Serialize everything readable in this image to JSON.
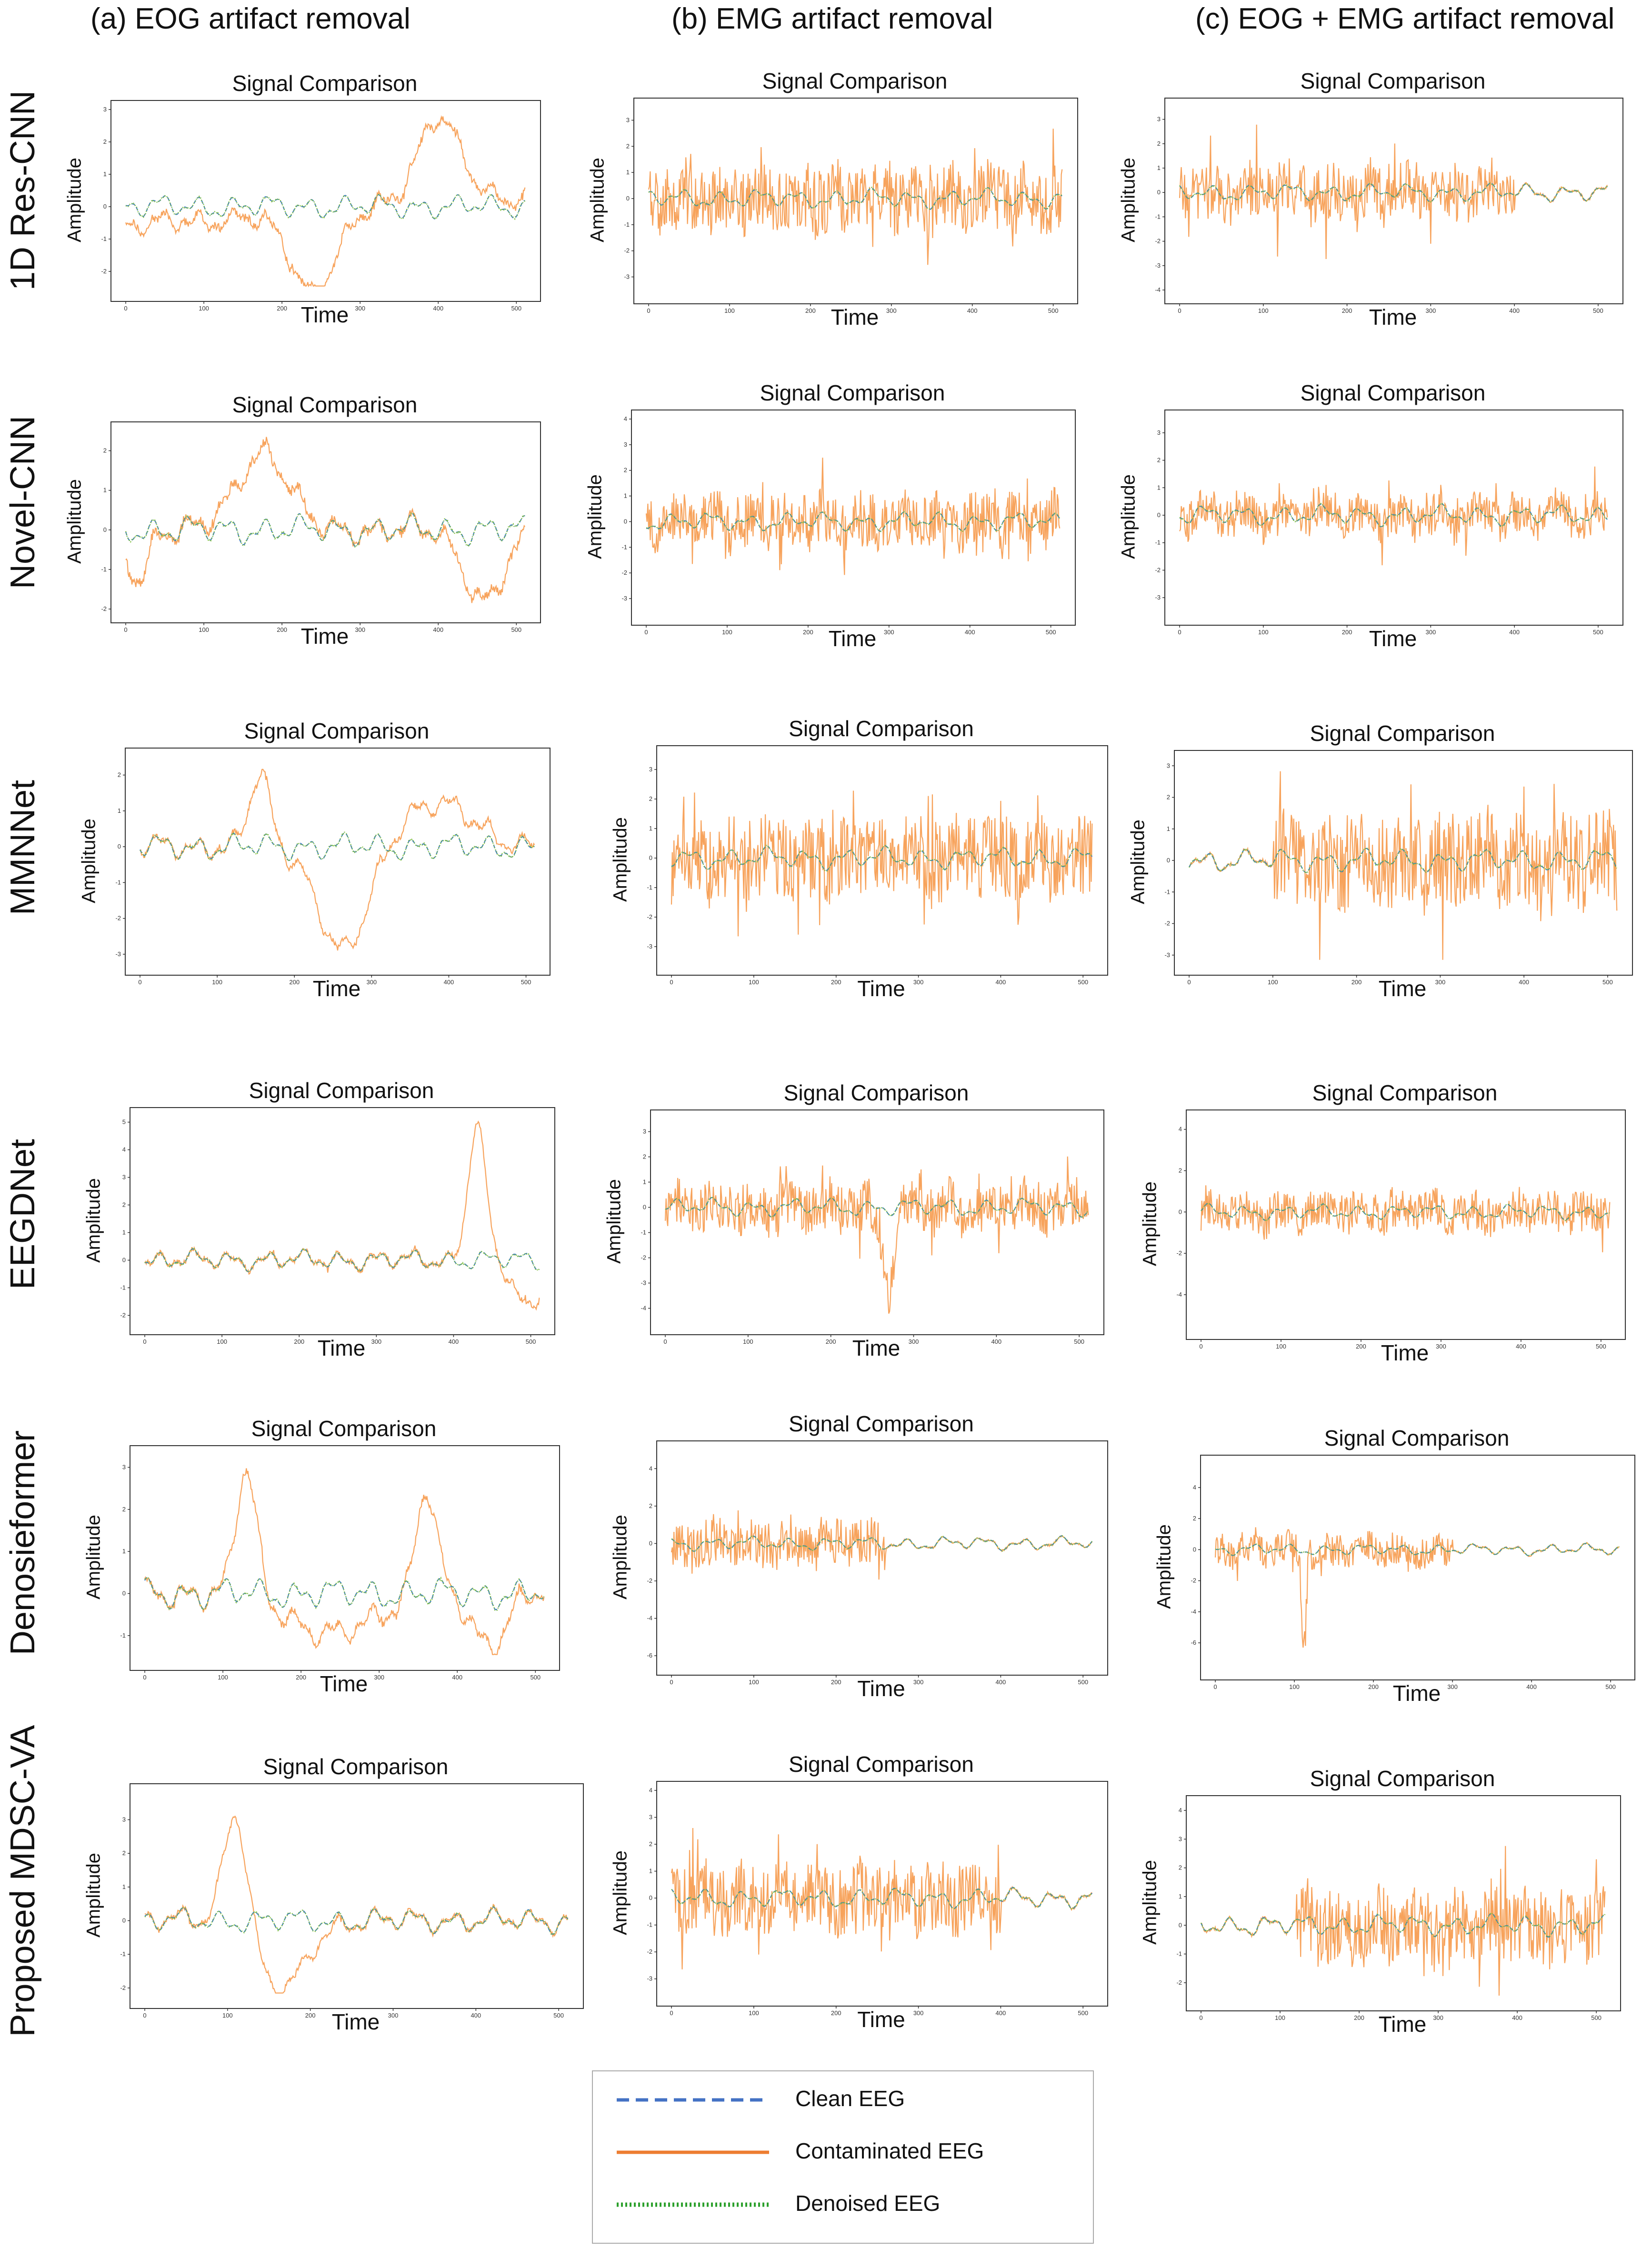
{
  "columns": [
    {
      "label": "(a) EOG artifact removal"
    },
    {
      "label": "(b) EMG artifact removal"
    },
    {
      "label": "(c) EOG + EMG artifact removal"
    }
  ],
  "rows": [
    {
      "label": "1D Res-CNN"
    },
    {
      "label": "Novel-CNN"
    },
    {
      "label": "MMNNet"
    },
    {
      "label": "EEGDNet"
    },
    {
      "label": "Denosieformer"
    },
    {
      "label": "Proposed MDSC-VA"
    }
  ],
  "legend": {
    "items": [
      {
        "label": "Clean EEG",
        "color": "#4472c4",
        "style": "dashed"
      },
      {
        "label": "Contaminated EEG",
        "color": "#ed7d31",
        "style": "solid"
      },
      {
        "label": "Denoised EEG",
        "color": "#2ca02c",
        "style": "dotted"
      }
    ]
  },
  "colors": {
    "clean": "#3b78c2",
    "contaminated": "#f7a35c",
    "denoised": "#7fbf3f"
  },
  "chart_data": [
    {
      "type": "line",
      "model": "1D Res-CNN",
      "artifact": "EOG",
      "title": "Signal Comparison",
      "xlabel": "Time",
      "ylabel": "Amplitude",
      "xlim": [
        0,
        512
      ],
      "ylim": [
        -2.5,
        3
      ],
      "xticks": [
        0,
        100,
        200,
        300,
        400,
        500
      ],
      "yticks": [
        -2,
        -1,
        0,
        1,
        2,
        3
      ],
      "contamination": {
        "events": [
          {
            "center": 240,
            "width": 40,
            "amp": -2.4
          },
          {
            "center": 400,
            "width": 38,
            "amp": 2.7
          }
        ],
        "emg": 0.15,
        "drift": [
          -0.6,
          0.3
        ]
      }
    },
    {
      "type": "line",
      "model": "1D Res-CNN",
      "artifact": "EMG",
      "title": "Signal Comparison",
      "xlabel": "Time",
      "ylabel": "Amplitude",
      "xlim": [
        0,
        512
      ],
      "ylim": [
        -3.5,
        3.5
      ],
      "xticks": [
        0,
        100,
        200,
        300,
        400,
        500
      ],
      "yticks": [
        -3,
        -2,
        -1,
        0,
        1,
        2,
        3
      ],
      "contamination": {
        "events": [],
        "emg": 1.6,
        "drift": [
          0,
          0
        ]
      }
    },
    {
      "type": "line",
      "model": "1D Res-CNN",
      "artifact": "EOG + EMG",
      "title": "Signal Comparison",
      "xlabel": "Time",
      "ylabel": "Amplitude",
      "xlim": [
        0,
        512
      ],
      "ylim": [
        -4,
        3.5
      ],
      "xticks": [
        0,
        100,
        200,
        300,
        400,
        500
      ],
      "yticks": [
        -4,
        -3,
        -2,
        -1,
        0,
        1,
        2,
        3
      ],
      "contamination": {
        "events": [],
        "emg": 1.5,
        "emg_range": [
          0,
          400
        ],
        "drift": [
          0,
          0
        ]
      }
    },
    {
      "type": "line",
      "model": "Novel-CNN",
      "artifact": "EOG",
      "title": "Signal Comparison",
      "xlabel": "Time",
      "ylabel": "Amplitude",
      "xlim": [
        0,
        512
      ],
      "ylim": [
        -2,
        2.5
      ],
      "xticks": [
        0,
        100,
        200,
        300,
        400,
        500
      ],
      "yticks": [
        -2,
        -1,
        0,
        1,
        2
      ],
      "contamination": {
        "events": [
          {
            "center": 175,
            "width": 45,
            "amp": 2.0
          },
          {
            "center": 460,
            "width": 35,
            "amp": -1.8
          },
          {
            "center": 15,
            "width": 18,
            "amp": -1.2
          }
        ],
        "emg": 0.15,
        "drift": [
          0,
          0
        ]
      }
    },
    {
      "type": "line",
      "model": "Novel-CNN",
      "artifact": "EMG",
      "title": "Signal Comparison",
      "xlabel": "Time",
      "ylabel": "Amplitude",
      "xlim": [
        0,
        512
      ],
      "ylim": [
        -3.5,
        4
      ],
      "xticks": [
        0,
        100,
        200,
        300,
        400,
        500
      ],
      "yticks": [
        -3,
        -2,
        -1,
        0,
        1,
        2,
        3,
        4
      ],
      "contamination": {
        "events": [],
        "emg": 1.3,
        "drift": [
          0,
          0
        ]
      }
    },
    {
      "type": "line",
      "model": "Novel-CNN",
      "artifact": "EOG + EMG",
      "title": "Signal Comparison",
      "xlabel": "Time",
      "ylabel": "Amplitude",
      "xlim": [
        0,
        512
      ],
      "ylim": [
        -3.5,
        3.5
      ],
      "xticks": [
        0,
        100,
        200,
        300,
        400,
        500
      ],
      "yticks": [
        -3,
        -2,
        -1,
        0,
        1,
        2,
        3
      ],
      "contamination": {
        "events": [],
        "emg": 0.9,
        "drift": [
          0,
          0
        ]
      }
    },
    {
      "type": "line",
      "model": "MMNNet",
      "artifact": "EOG",
      "title": "Signal Comparison",
      "xlabel": "Time",
      "ylabel": "Amplitude",
      "xlim": [
        0,
        512
      ],
      "ylim": [
        -3.2,
        2.5
      ],
      "xticks": [
        0,
        100,
        200,
        300,
        400,
        500
      ],
      "yticks": [
        -3,
        -2,
        -1,
        0,
        1,
        2
      ],
      "contamination": {
        "events": [
          {
            "center": 155,
            "width": 18,
            "amp": 2.0
          },
          {
            "center": 265,
            "width": 45,
            "amp": -3.0
          },
          {
            "center": 380,
            "width": 70,
            "amp": 1.2
          }
        ],
        "emg": 0.1,
        "drift": [
          0,
          0
        ]
      }
    },
    {
      "type": "line",
      "model": "MMNNet",
      "artifact": "EMG",
      "title": "Signal Comparison",
      "xlabel": "Time",
      "ylabel": "Amplitude",
      "xlim": [
        0,
        512
      ],
      "ylim": [
        -3.5,
        3.5
      ],
      "xticks": [
        0,
        100,
        200,
        300,
        400,
        500
      ],
      "yticks": [
        -3,
        -2,
        -1,
        0,
        1,
        2,
        3
      ],
      "contamination": {
        "events": [],
        "emg": 1.7,
        "drift": [
          0,
          0
        ]
      }
    },
    {
      "type": "line",
      "model": "MMNNet",
      "artifact": "EOG + EMG",
      "title": "Signal Comparison",
      "xlabel": "Time",
      "ylabel": "Amplitude",
      "xlim": [
        0,
        512
      ],
      "ylim": [
        -3.2,
        3.2
      ],
      "xticks": [
        0,
        100,
        200,
        300,
        400,
        500
      ],
      "yticks": [
        -3,
        -2,
        -1,
        0,
        1,
        2,
        3
      ],
      "contamination": {
        "events": [],
        "emg": 1.8,
        "emg_range": [
          100,
          512
        ],
        "drift": [
          0,
          0
        ]
      }
    },
    {
      "type": "line",
      "model": "EEGDNet",
      "artifact": "EOG",
      "title": "Signal Comparison",
      "xlabel": "Time",
      "ylabel": "Amplitude",
      "xlim": [
        0,
        512
      ],
      "ylim": [
        -2.2,
        5.2
      ],
      "xticks": [
        0,
        100,
        200,
        300,
        400,
        500
      ],
      "yticks": [
        -2,
        -1,
        0,
        1,
        2,
        3,
        4,
        5
      ],
      "contamination": {
        "events": [
          {
            "center": 430,
            "width": 16,
            "amp": 4.9
          },
          {
            "center": 495,
            "width": 25,
            "amp": -1.7
          }
        ],
        "emg": 0.12,
        "drift": [
          0,
          0
        ]
      }
    },
    {
      "type": "line",
      "model": "EEGDNet",
      "artifact": "EMG",
      "title": "Signal Comparison",
      "xlabel": "Time",
      "ylabel": "Amplitude",
      "xlim": [
        0,
        512
      ],
      "ylim": [
        -4.5,
        3.5
      ],
      "xticks": [
        0,
        100,
        200,
        300,
        400,
        500
      ],
      "yticks": [
        -4,
        -3,
        -2,
        -1,
        0,
        1,
        2,
        3
      ],
      "contamination": {
        "events": [
          {
            "center": 270,
            "width": 10,
            "amp": -3.0
          }
        ],
        "emg": 1.2,
        "drift": [
          0,
          0
        ]
      }
    },
    {
      "type": "line",
      "model": "EEGDNet",
      "artifact": "EOG + EMG",
      "title": "Signal Comparison",
      "xlabel": "Time",
      "ylabel": "Amplitude",
      "xlim": [
        0,
        512
      ],
      "ylim": [
        -5.5,
        4.5
      ],
      "xticks": [
        0,
        100,
        200,
        300,
        400,
        500
      ],
      "yticks": [
        -4,
        -2,
        0,
        2,
        4
      ],
      "contamination": {
        "events": [],
        "emg": 1.2,
        "drift": [
          0,
          0
        ]
      }
    },
    {
      "type": "line",
      "model": "Denosieformer",
      "artifact": "EOG",
      "title": "Signal Comparison",
      "xlabel": "Time",
      "ylabel": "Amplitude",
      "xlim": [
        0,
        512
      ],
      "ylim": [
        -1.5,
        3.3
      ],
      "xticks": [
        0,
        100,
        200,
        300,
        400,
        500
      ],
      "yticks": [
        -1,
        0,
        1,
        2,
        3
      ],
      "contamination": {
        "events": [
          {
            "center": 130,
            "width": 18,
            "amp": 3.0
          },
          {
            "center": 360,
            "width": 18,
            "amp": 2.5
          },
          {
            "center": 240,
            "width": 70,
            "amp": -1.0
          },
          {
            "center": 440,
            "width": 30,
            "amp": -1.2
          }
        ],
        "emg": 0.1,
        "drift": [
          0,
          0
        ]
      }
    },
    {
      "type": "line",
      "model": "Denosieformer",
      "artifact": "EMG",
      "title": "Signal Comparison",
      "xlabel": "Time",
      "ylabel": "Amplitude",
      "xlim": [
        0,
        512
      ],
      "ylim": [
        -6.3,
        5
      ],
      "xticks": [
        0,
        100,
        200,
        300,
        400,
        500
      ],
      "yticks": [
        -6,
        -4,
        -2,
        0,
        2,
        4
      ],
      "contamination": {
        "events": [],
        "emg": 1.6,
        "emg_range": [
          0,
          260
        ],
        "drift": [
          0,
          0
        ]
      }
    },
    {
      "type": "line",
      "model": "Denosieformer",
      "artifact": "EOG + EMG",
      "title": "Signal Comparison",
      "xlabel": "Time",
      "ylabel": "Amplitude",
      "xlim": [
        0,
        512
      ],
      "ylim": [
        -7.5,
        5.5
      ],
      "xticks": [
        0,
        100,
        200,
        300,
        400,
        500
      ],
      "yticks": [
        -6,
        -4,
        -2,
        0,
        2,
        4
      ],
      "contamination": {
        "events": [
          {
            "center": 112,
            "width": 4,
            "amp": -6.5
          }
        ],
        "emg": 1.3,
        "emg_range": [
          0,
          300
        ],
        "drift": [
          0,
          0
        ]
      }
    },
    {
      "type": "line",
      "model": "Proposed MDSC-VA",
      "artifact": "EOG",
      "title": "Signal Comparison",
      "xlabel": "Time",
      "ylabel": "Amplitude",
      "xlim": [
        0,
        512
      ],
      "ylim": [
        -2.2,
        3.8
      ],
      "xticks": [
        0,
        100,
        200,
        300,
        400,
        500
      ],
      "yticks": [
        -2,
        -1,
        0,
        1,
        2,
        3
      ],
      "contamination": {
        "events": [
          {
            "center": 110,
            "width": 20,
            "amp": 3.5
          },
          {
            "center": 165,
            "width": 40,
            "amp": -2.1
          }
        ],
        "emg": 0.1,
        "drift": [
          0,
          0
        ]
      }
    },
    {
      "type": "line",
      "model": "Proposed MDSC-VA",
      "artifact": "EMG",
      "title": "Signal Comparison",
      "xlabel": "Time",
      "ylabel": "Amplitude",
      "xlim": [
        0,
        512
      ],
      "ylim": [
        -3.5,
        4
      ],
      "xticks": [
        0,
        100,
        200,
        300,
        400,
        500
      ],
      "yticks": [
        -3,
        -2,
        -1,
        0,
        1,
        2,
        3,
        4
      ],
      "contamination": {
        "events": [],
        "emg": 1.6,
        "emg_range": [
          0,
          400
        ],
        "drift": [
          0,
          0
        ]
      }
    },
    {
      "type": "line",
      "model": "Proposed MDSC-VA",
      "artifact": "EOG + EMG",
      "title": "Signal Comparison",
      "xlabel": "Time",
      "ylabel": "Amplitude",
      "xlim": [
        0,
        512
      ],
      "ylim": [
        -2.5,
        4.2
      ],
      "xticks": [
        0,
        100,
        200,
        300,
        400,
        500
      ],
      "yticks": [
        -2,
        -1,
        0,
        1,
        2,
        3,
        4
      ],
      "contamination": {
        "events": [],
        "emg": 1.6,
        "emg_range": [
          120,
          512
        ],
        "drift": [
          0,
          0
        ]
      }
    }
  ]
}
